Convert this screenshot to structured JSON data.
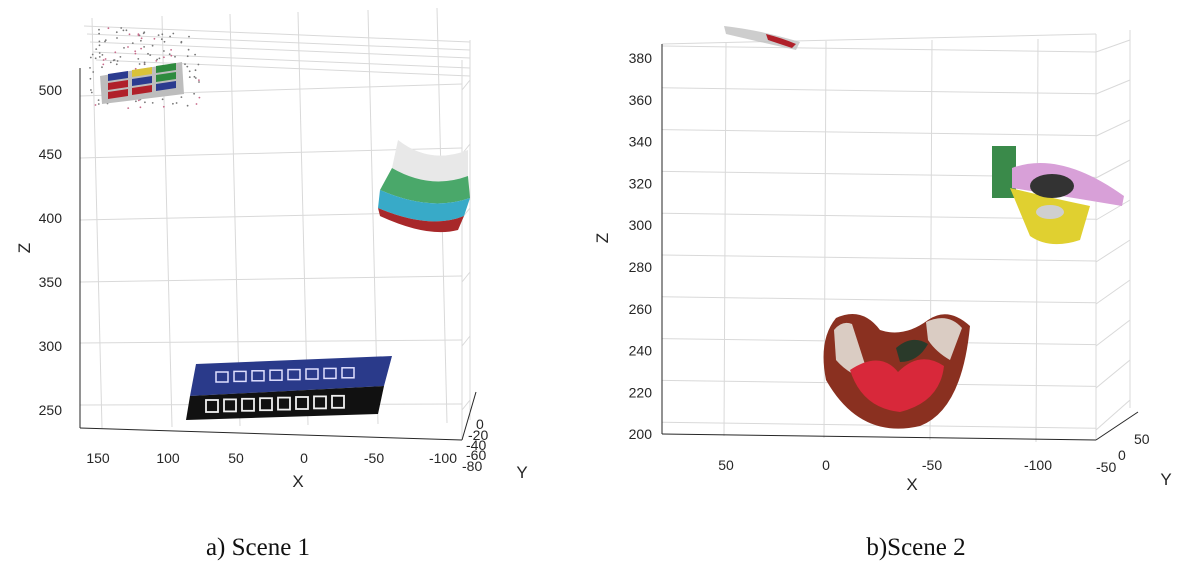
{
  "chart_data": [
    {
      "type": "scatter",
      "subtype": "3d-point-cloud",
      "caption": "a) Scene 1",
      "xlabel": "X",
      "ylabel": "Y",
      "zlabel": "Z",
      "x_ticks": [
        "150",
        "100",
        "50",
        "0",
        "-50",
        "-100"
      ],
      "y_ticks": [
        "0",
        "-20",
        "-40",
        "-60",
        "-80"
      ],
      "z_ticks": [
        "500",
        "450",
        "400",
        "350",
        "300",
        "250"
      ],
      "grid": true,
      "objects": [
        {
          "name": "color checker board",
          "x": [
            105,
            185
          ],
          "z": [
            490,
            530
          ],
          "colors": [
            "#2b3b8f",
            "#d9c23a",
            "#2e8b3e",
            "#b0202a",
            "#c0c0c0"
          ]
        },
        {
          "name": "curved striped object",
          "x": [
            -80,
            -120
          ],
          "z": [
            390,
            455
          ],
          "colors": [
            "#e8e8e8",
            "#4aa86a",
            "#38aac8",
            "#a8282a"
          ]
        },
        {
          "name": "sign board",
          "x": [
            -65,
            85
          ],
          "z": [
            240,
            300
          ],
          "colors": [
            "#2a3a8a",
            "#111111"
          ]
        }
      ]
    },
    {
      "type": "scatter",
      "subtype": "3d-point-cloud",
      "caption": "b)Scene 2",
      "xlabel": "X",
      "ylabel": "Y",
      "zlabel": "Z",
      "x_ticks": [
        "50",
        "0",
        "-50",
        "-100"
      ],
      "y_ticks": [
        "-50",
        "0",
        "50"
      ],
      "z_ticks": [
        "380",
        "360",
        "340",
        "320",
        "300",
        "280",
        "260",
        "240",
        "220",
        "200"
      ],
      "grid": true,
      "objects": [
        {
          "name": "top object",
          "x": [
            5,
            35
          ],
          "z": [
            380,
            392
          ],
          "colors": [
            "#c0c0c0",
            "#b0202a"
          ]
        },
        {
          "name": "multicolor toy",
          "x": [
            -90,
            -170
          ],
          "z": [
            292,
            340
          ],
          "colors": [
            "#3a8a4a",
            "#d8a0d8",
            "#e0d030",
            "#333333"
          ]
        },
        {
          "name": "bowl object",
          "x": [
            0,
            -70
          ],
          "z": [
            204,
            260
          ],
          "colors": [
            "#8a3020",
            "#d8283a",
            "#e8e8e0",
            "#2a3a2a"
          ]
        }
      ]
    }
  ]
}
